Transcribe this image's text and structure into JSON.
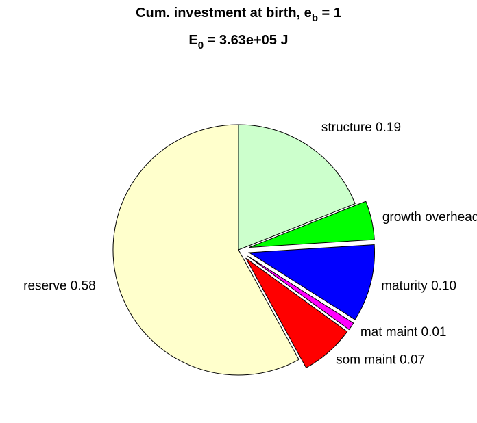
{
  "chart_data": {
    "type": "pie",
    "title": {
      "text": "Cum. investment at birth, e",
      "sub": "b",
      "tail": " = 1"
    },
    "subtitle": {
      "text": "E",
      "sub": "0",
      "tail": " = 3.63e+05 J"
    },
    "categories": [
      "structure",
      "growth overhead",
      "maturity",
      "mat maint",
      "som maint",
      "reserve"
    ],
    "values": [
      0.19,
      0.05,
      0.1,
      0.01,
      0.07,
      0.58
    ],
    "value_labels": [
      "0.19",
      null,
      "0.10",
      "0.01",
      "0.07",
      "0.58"
    ],
    "colors": [
      "#ccffcc",
      "#00ff00",
      "#0000ff",
      "#ff00ff",
      "#ff0000",
      "#ffffcc"
    ],
    "explode": [
      false,
      true,
      true,
      true,
      true,
      false
    ]
  }
}
